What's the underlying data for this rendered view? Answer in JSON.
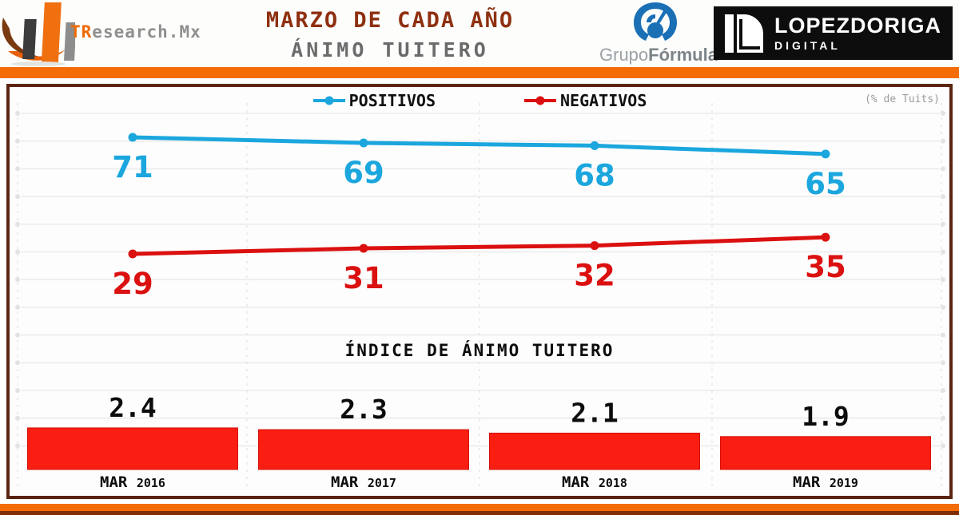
{
  "header": {
    "brand": {
      "tr": "TR",
      "rest": "esearch.Mx"
    },
    "title_line1": "MARZO DE CADA AÑO",
    "title_line2": "ÁNIMO TUITERO",
    "grupo_formula": {
      "grupo": "Grupo",
      "formula": "Fórmula"
    },
    "lopezdoriga": {
      "line1": "LOPEZDORIGA",
      "line2": "DIGITAL"
    }
  },
  "chart": {
    "unit_note": "(% de Tuits)",
    "index_title": "ÍNDICE DE ÁNIMO TUITERO"
  },
  "chart_data": {
    "type": "combo",
    "title": "MARZO DE CADA AÑO — ÁNIMO TUITERO",
    "unit": "% de Tuits",
    "grid": true,
    "legend_position": "top",
    "categories": [
      {
        "month": "MAR",
        "year": "2016"
      },
      {
        "month": "MAR",
        "year": "2017"
      },
      {
        "month": "MAR",
        "year": "2018"
      },
      {
        "month": "MAR",
        "year": "2019"
      }
    ],
    "series": [
      {
        "name": "POSITIVOS",
        "type": "line",
        "color": "#1ba7de",
        "values": [
          71,
          69,
          68,
          65
        ]
      },
      {
        "name": "NEGATIVOS",
        "type": "line",
        "color": "#db1010",
        "values": [
          29,
          31,
          32,
          35
        ]
      },
      {
        "name": "ÍNDICE DE ÁNIMO TUITERO",
        "type": "bar",
        "color": "#f91d12",
        "values": [
          2.4,
          2.3,
          2.1,
          1.9
        ]
      }
    ]
  }
}
